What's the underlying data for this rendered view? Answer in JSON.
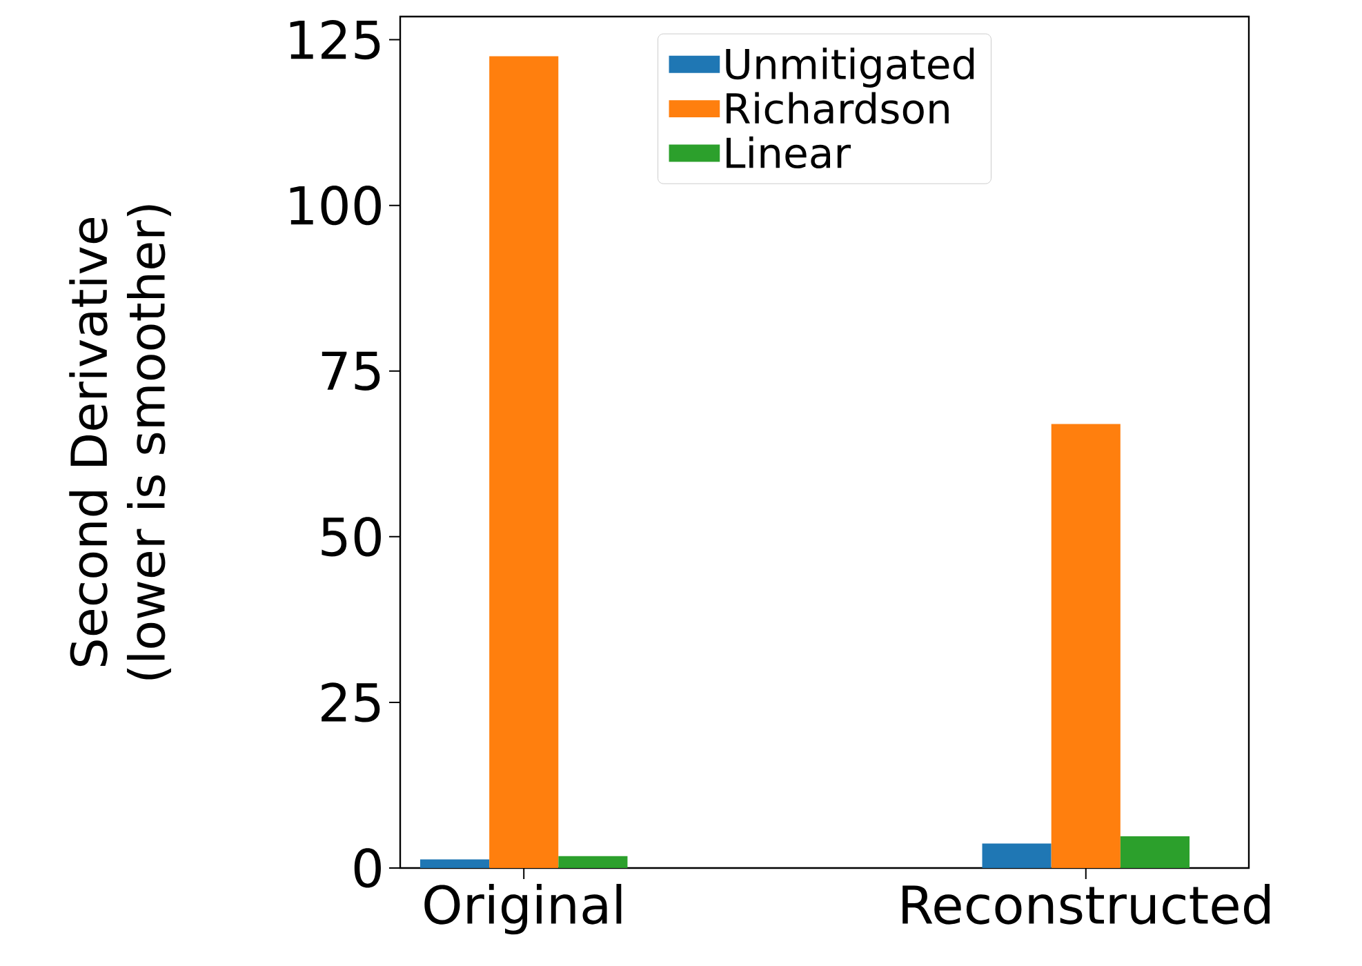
{
  "chart_data": {
    "type": "bar",
    "ylabel": "Second Derivative (lower is smoother)",
    "categories": [
      "Original",
      "Reconstructed"
    ],
    "series": [
      {
        "name": "Unmitigated",
        "color": "#1f77b4",
        "values": [
          1.3,
          3.7
        ]
      },
      {
        "name": "Richardson",
        "color": "#ff7f0e",
        "values": [
          122.5,
          67
        ]
      },
      {
        "name": "Linear",
        "color": "#2ca02c",
        "values": [
          1.8,
          4.8
        ]
      }
    ],
    "ylim": [
      0,
      128.5
    ],
    "yticks": [
      0,
      25,
      50,
      75,
      100,
      125
    ],
    "legend": "top",
    "grid": false
  }
}
